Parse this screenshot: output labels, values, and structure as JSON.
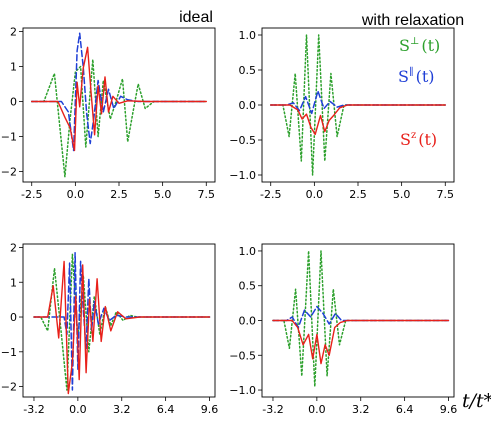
{
  "titles": {
    "left": "ideal",
    "right": "with relaxation"
  },
  "x_axis_label": "t/t*",
  "legend": [
    {
      "base": "S",
      "sup": "⊥",
      "arg": "(t)",
      "color": "#2ca02c"
    },
    {
      "base": "S",
      "sup": "∥",
      "arg": "(t)",
      "color": "#1f3fd6"
    },
    {
      "base": "S",
      "sup": "z",
      "arg": "(t)",
      "color": "#e8201a"
    }
  ],
  "colors": {
    "perp": "#2ca02c",
    "par": "#1f3fd6",
    "z": "#e8201a"
  },
  "chart_data": [
    {
      "type": "line",
      "title": "ideal",
      "xlim": [
        -3.0,
        8.0
      ],
      "ylim": [
        -2.3,
        2.1
      ],
      "grid": false,
      "xticks": [
        -2.5,
        0.0,
        2.5,
        5.0,
        7.5
      ],
      "xtick_labels": [
        "-2.5",
        "0.0",
        "2.5",
        "5.0",
        "7.5"
      ],
      "yticks": [
        -2,
        -1,
        0,
        1,
        2
      ],
      "ytick_labels": [
        "−2",
        "−1",
        "0",
        "1",
        "2"
      ],
      "series": [
        {
          "key": "perp",
          "style": "dotted",
          "x": [
            -2.5,
            -1.8,
            -1.2,
            -0.6,
            -0.3,
            0.0,
            0.3,
            0.6,
            1.0,
            1.3,
            1.6,
            2.0,
            2.3,
            2.7,
            3.0,
            3.3,
            3.6,
            4.0,
            4.5,
            7.5
          ],
          "y": [
            0.0,
            0.0,
            0.8,
            -2.15,
            -0.5,
            0.85,
            1.0,
            -1.3,
            1.2,
            -1.0,
            0.6,
            -0.5,
            -0.05,
            0.65,
            -1.15,
            -0.3,
            0.5,
            -0.2,
            0.0,
            0.0
          ]
        },
        {
          "key": "par",
          "style": "dashed",
          "x": [
            -2.5,
            -0.8,
            -0.4,
            -0.1,
            0.1,
            0.25,
            0.45,
            0.65,
            0.85,
            1.05,
            1.3,
            1.6,
            1.9,
            2.2,
            2.6,
            3.0,
            3.6,
            7.5
          ],
          "y": [
            0.0,
            0.0,
            -0.3,
            -1.4,
            1.45,
            1.95,
            1.0,
            -0.35,
            -1.2,
            -0.5,
            0.6,
            -0.3,
            0.35,
            -0.2,
            0.15,
            0.05,
            0.0,
            0.0
          ]
        },
        {
          "key": "z",
          "style": "solid",
          "x": [
            -2.5,
            -1.0,
            -0.6,
            -0.3,
            -0.05,
            0.1,
            0.25,
            0.45,
            0.7,
            0.9,
            1.1,
            1.3,
            1.5,
            1.7,
            1.9,
            2.15,
            2.5,
            3.0,
            4.0,
            7.5
          ],
          "y": [
            0.0,
            0.0,
            -0.45,
            -0.75,
            -1.4,
            0.55,
            -0.15,
            0.95,
            1.55,
            0.25,
            -0.95,
            0.45,
            -0.35,
            0.7,
            -0.3,
            0.15,
            -0.05,
            0.02,
            0.0,
            0.0
          ]
        }
      ]
    },
    {
      "type": "line",
      "title": "with relaxation",
      "xlim": [
        -3.0,
        8.0
      ],
      "ylim": [
        -1.1,
        1.1
      ],
      "grid": false,
      "xticks": [
        -2.5,
        0.0,
        2.5,
        5.0,
        7.5
      ],
      "xtick_labels": [
        "-2.5",
        "0.0",
        "2.5",
        "5.0",
        "7.5"
      ],
      "yticks": [
        -1.0,
        -0.5,
        0.0,
        0.5,
        1.0
      ],
      "ytick_labels": [
        "−1.0",
        "−0.5",
        "0.0",
        "0.5",
        "1.0"
      ],
      "series": [
        {
          "key": "perp",
          "style": "dotted",
          "x": [
            -2.5,
            -1.8,
            -1.45,
            -1.1,
            -0.75,
            -0.45,
            -0.1,
            0.25,
            0.6,
            0.95,
            1.3,
            1.7,
            2.1,
            7.5
          ],
          "y": [
            0.0,
            0.0,
            -0.45,
            0.45,
            -0.8,
            1.0,
            -1.0,
            1.0,
            -0.8,
            0.45,
            -0.45,
            0.0,
            0.0,
            0.0
          ]
        },
        {
          "key": "par",
          "style": "dashed",
          "x": [
            -2.5,
            -1.6,
            -1.2,
            -0.85,
            -0.5,
            -0.15,
            0.2,
            0.55,
            0.9,
            1.3,
            1.7,
            2.1,
            7.5
          ],
          "y": [
            0.0,
            0.0,
            0.03,
            -0.08,
            0.12,
            -0.12,
            0.2,
            -0.05,
            0.05,
            -0.03,
            0.0,
            0.0,
            0.0
          ]
        },
        {
          "key": "z",
          "style": "solid",
          "x": [
            -2.5,
            -1.4,
            -0.95,
            -0.7,
            -0.45,
            -0.2,
            0.05,
            0.35,
            0.6,
            0.85,
            1.1,
            1.45,
            1.9,
            7.5
          ],
          "y": [
            0.0,
            0.0,
            -0.07,
            -0.2,
            -0.13,
            -0.32,
            -0.42,
            -0.15,
            -0.38,
            -0.22,
            -0.15,
            -0.04,
            0.0,
            0.0
          ]
        }
      ]
    },
    {
      "type": "line",
      "title": "",
      "xlim": [
        -4.0,
        10.0
      ],
      "ylim": [
        -2.3,
        2.1
      ],
      "grid": false,
      "xticks": [
        -3.2,
        0.0,
        3.2,
        6.4,
        9.6
      ],
      "xtick_labels": [
        "-3.2",
        "0.0",
        "3.2",
        "6.4",
        "9.6"
      ],
      "yticks": [
        -2,
        -1,
        0,
        1,
        2
      ],
      "ytick_labels": [
        "−2",
        "−1",
        "0",
        "1",
        "2"
      ],
      "series": [
        {
          "key": "perp",
          "style": "dotted",
          "x": [
            -3.2,
            -2.7,
            -2.2,
            -1.7,
            -1.2,
            -0.8,
            -0.4,
            0.0,
            0.4,
            0.8,
            1.2,
            1.6,
            2.0,
            2.4,
            2.8,
            3.3,
            3.8,
            4.3,
            5.0,
            9.6
          ],
          "y": [
            0.0,
            0.0,
            -0.4,
            1.4,
            -0.5,
            -2.1,
            1.8,
            -0.6,
            1.2,
            -1.0,
            0.6,
            -0.5,
            0.3,
            -0.25,
            0.15,
            -0.1,
            0.05,
            0.0,
            0.0,
            0.0
          ]
        },
        {
          "key": "par",
          "style": "dashed",
          "x": [
            -3.2,
            -1.0,
            -0.8,
            -0.6,
            -0.4,
            -0.2,
            0.0,
            0.2,
            0.4,
            0.6,
            0.8,
            1.0,
            1.2,
            1.5,
            1.9,
            2.3,
            2.8,
            3.5,
            9.6
          ],
          "y": [
            0.0,
            0.0,
            -0.5,
            1.55,
            -2.1,
            1.85,
            -1.5,
            1.6,
            0.2,
            -0.9,
            1.1,
            -0.4,
            0.45,
            -0.2,
            0.25,
            -0.1,
            0.05,
            0.0,
            0.0
          ]
        },
        {
          "key": "z",
          "style": "solid",
          "x": [
            -3.2,
            -2.2,
            -1.8,
            -1.4,
            -1.0,
            -0.7,
            -0.4,
            -0.15,
            0.1,
            0.35,
            0.6,
            0.85,
            1.1,
            1.4,
            1.7,
            2.0,
            2.4,
            2.9,
            3.5,
            4.5,
            9.6
          ],
          "y": [
            0.0,
            0.0,
            0.9,
            -0.6,
            1.6,
            -2.2,
            -1.3,
            0.6,
            -1.8,
            1.5,
            -1.6,
            0.5,
            -0.7,
            1.1,
            -0.7,
            0.3,
            -0.4,
            0.15,
            -0.05,
            0.0,
            0.0
          ]
        }
      ]
    },
    {
      "type": "line",
      "title": "",
      "xlim": [
        -4.0,
        10.0
      ],
      "ylim": [
        -1.1,
        1.1
      ],
      "grid": false,
      "xticks": [
        -3.2,
        0.0,
        3.2,
        6.4,
        9.6
      ],
      "xtick_labels": [
        "-3.2",
        "0.0",
        "3.2",
        "6.4",
        "9.6"
      ],
      "yticks": [
        -1.0,
        -0.5,
        0.0,
        0.5,
        1.0
      ],
      "ytick_labels": [
        "−1.0",
        "−0.5",
        "0.0",
        "0.5",
        "1.0"
      ],
      "series": [
        {
          "key": "perp",
          "style": "dotted",
          "x": [
            -3.2,
            -2.4,
            -2.0,
            -1.55,
            -1.1,
            -0.6,
            -0.15,
            0.3,
            0.75,
            1.2,
            1.65,
            2.1,
            2.6,
            9.6
          ],
          "y": [
            0.0,
            0.0,
            -0.4,
            0.45,
            -0.8,
            1.0,
            -0.95,
            1.0,
            -0.8,
            0.45,
            -0.35,
            0.0,
            0.0,
            0.0
          ]
        },
        {
          "key": "par",
          "style": "dashed",
          "x": [
            -3.2,
            -2.2,
            -1.8,
            -1.35,
            -0.9,
            -0.45,
            0.0,
            0.45,
            0.9,
            1.35,
            1.8,
            2.3,
            9.6
          ],
          "y": [
            0.0,
            0.0,
            0.05,
            -0.1,
            0.15,
            0.05,
            0.2,
            0.1,
            -0.05,
            0.1,
            0.0,
            0.0,
            0.0
          ]
        },
        {
          "key": "z",
          "style": "solid",
          "x": [
            -3.2,
            -1.8,
            -1.4,
            -1.0,
            -0.6,
            -0.3,
            0.0,
            0.3,
            0.6,
            0.9,
            1.3,
            1.7,
            2.2,
            9.6
          ],
          "y": [
            0.0,
            0.0,
            -0.1,
            -0.35,
            -0.2,
            -0.55,
            -0.2,
            -0.62,
            -0.35,
            -0.5,
            -0.1,
            -0.03,
            0.0,
            0.0
          ]
        }
      ]
    }
  ]
}
